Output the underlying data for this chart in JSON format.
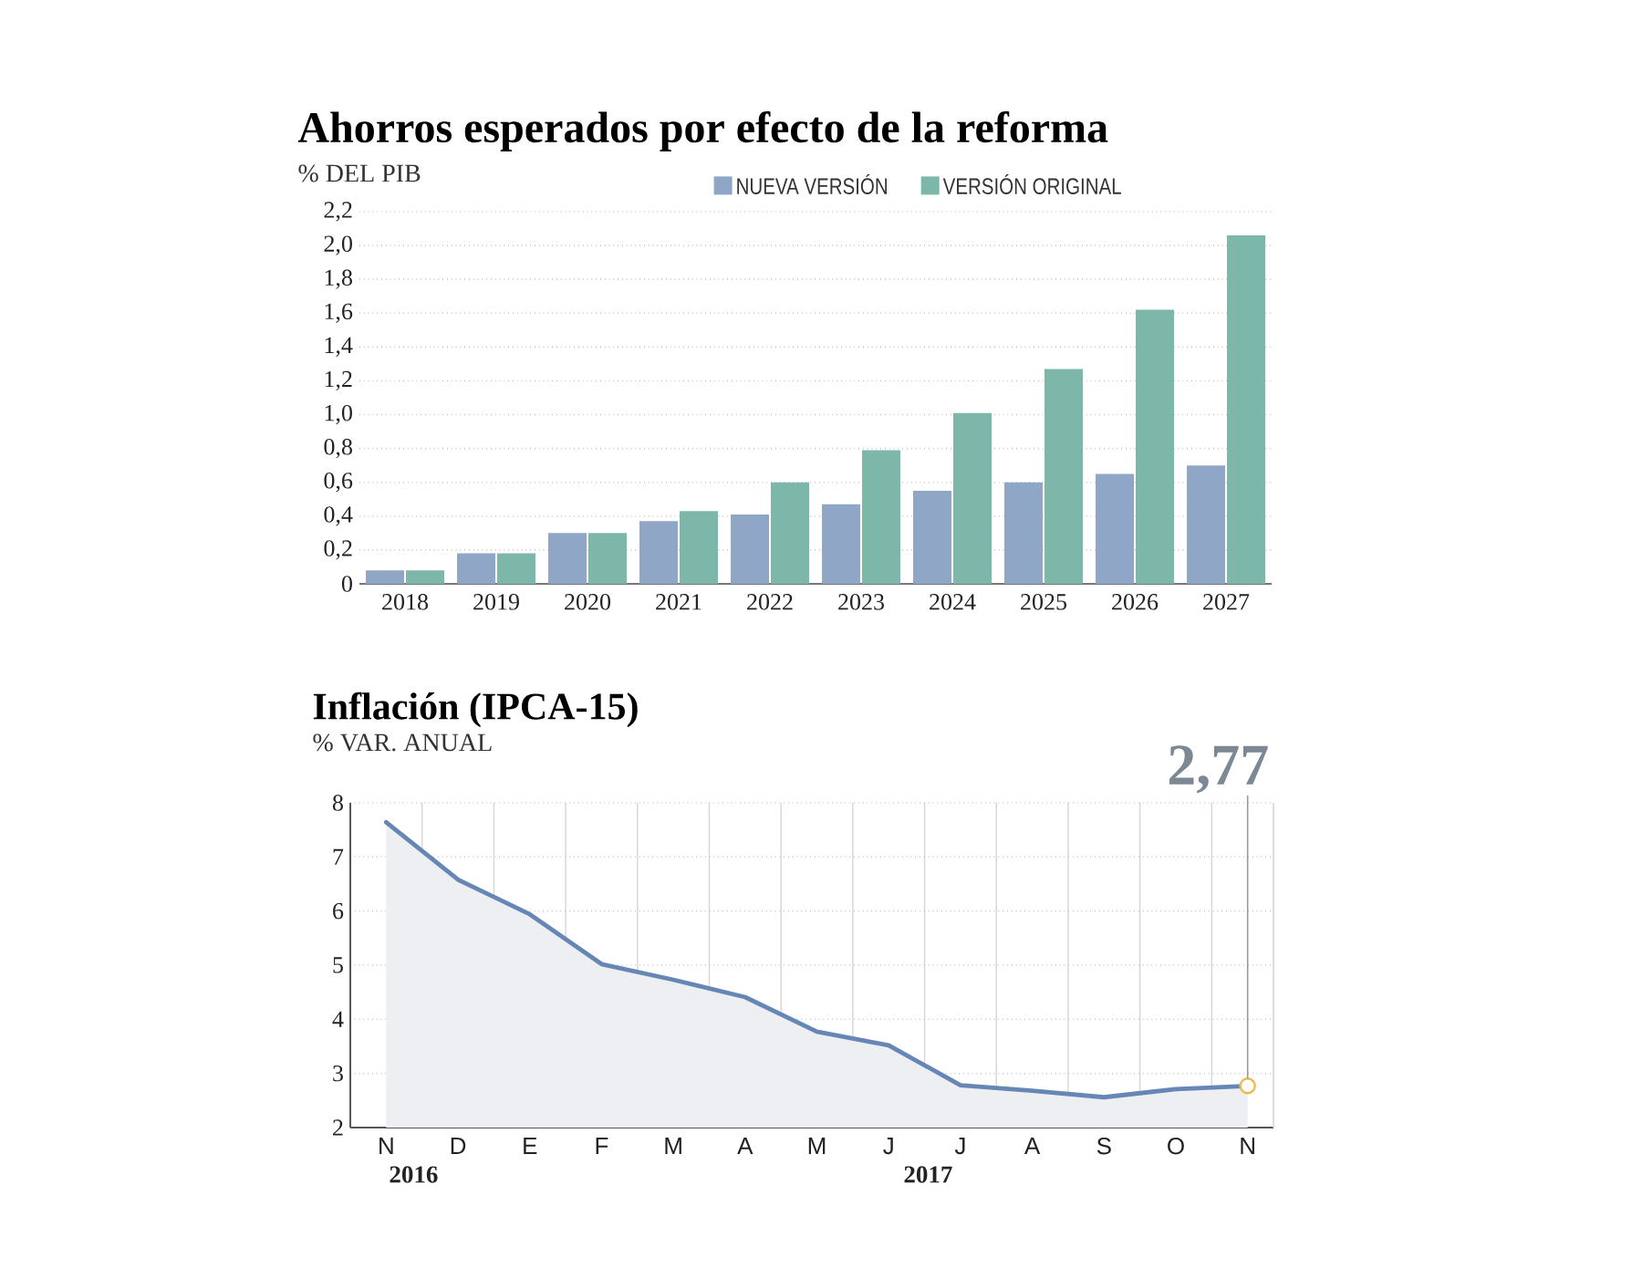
{
  "chart_data": [
    {
      "type": "bar",
      "title": "Ahorros esperados por efecto de la reforma",
      "ylabel": "% DEL PIB",
      "categories": [
        "2018",
        "2019",
        "2020",
        "2021",
        "2022",
        "2023",
        "2024",
        "2025",
        "2026",
        "2027"
      ],
      "series": [
        {
          "name": "NUEVA VERSIÓN",
          "color": "#8fa6c6",
          "values": [
            0.08,
            0.18,
            0.3,
            0.37,
            0.41,
            0.47,
            0.55,
            0.6,
            0.65,
            0.7
          ]
        },
        {
          "name": "VERSIÓN ORIGINAL",
          "color": "#7cb7a9",
          "values": [
            0.08,
            0.18,
            0.3,
            0.43,
            0.6,
            0.79,
            1.01,
            1.27,
            1.62,
            2.06
          ]
        }
      ],
      "ylim": [
        0,
        2.2
      ],
      "yticks": [
        0,
        {
          "value": 0.2,
          "label": "0,2"
        },
        {
          "value": 0.4,
          "label": "0,4"
        },
        {
          "value": 0.6,
          "label": "0,6"
        },
        {
          "value": 0.8,
          "label": "0,8"
        },
        {
          "value": 1.0,
          "label": "1,0"
        },
        {
          "value": 1.2,
          "label": "1,2"
        },
        {
          "value": 1.4,
          "label": "1,4"
        },
        {
          "value": 1.6,
          "label": "1,6"
        },
        {
          "value": 1.8,
          "label": "1,8"
        },
        {
          "value": 2.0,
          "label": "2,0"
        },
        {
          "value": 2.2,
          "label": "2,2"
        }
      ],
      "grid": "y",
      "legend": "top right"
    },
    {
      "type": "area",
      "title": "Inflación (IPCA-15)",
      "ylabel": "% VAR. ANUAL",
      "categories": [
        "N",
        "D",
        "E",
        "F",
        "M",
        "A",
        "M",
        "J",
        "J",
        "A",
        "S",
        "O",
        "N"
      ],
      "series": [
        {
          "color": "#6687b6",
          "values": [
            7.64,
            6.58,
            5.94,
            5.02,
            4.73,
            4.41,
            3.77,
            3.52,
            2.78,
            2.68,
            2.56,
            2.71,
            2.77
          ],
          "value_labels": [
            null,
            null,
            null,
            null,
            null,
            null,
            null,
            null,
            null,
            null,
            null,
            null,
            "2,77"
          ]
        }
      ],
      "ylim": [
        2,
        8
      ],
      "yticks": [
        2,
        3,
        4,
        5,
        6,
        7,
        8
      ],
      "grid": true,
      "annotations": [
        "2016",
        "2017"
      ]
    }
  ]
}
